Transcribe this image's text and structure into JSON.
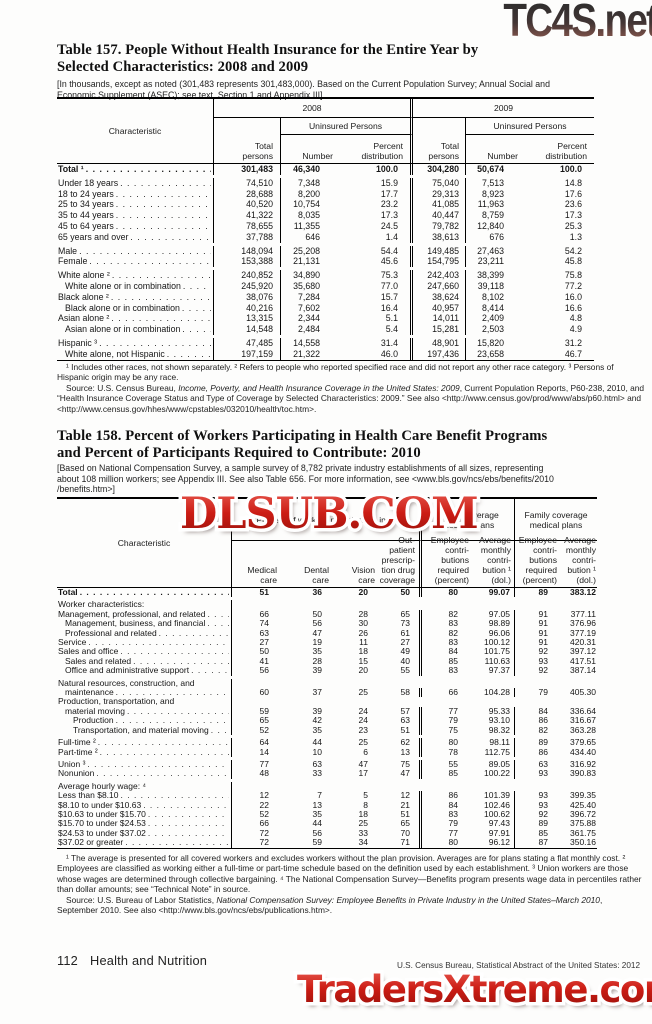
{
  "watermarks": {
    "top": "TC4S.net",
    "middle": "DLSUB.COM",
    "bottom": "TradersXtreme.com"
  },
  "footer": {
    "page_number": "112",
    "section": "Health and Nutrition",
    "credit": "U.S. Census Bureau, Statistical Abstract of the United States: 2012"
  },
  "table157": {
    "title": "Table 157. People Without Health Insurance for the Entire Year by\nSelected Characteristics: 2008 and 2009",
    "note": "[In thousands, except as noted (301,483 represents 301,483,000). Based on the Current Population Survey; Annual Social and\nEconomic Supplement (ASEC); see text, Section 1 and Appendix III]",
    "header": {
      "characteristic": "Characteristic",
      "year1": "2008",
      "year2": "2009",
      "uninsured": "Uninsured Persons",
      "total_persons": "Total\npersons",
      "number": "Number",
      "percent": "Percent\ndistribution"
    },
    "rows": [
      {
        "label": "Total ¹",
        "bold": true,
        "values": [
          "301,483",
          "46,340",
          "100.0",
          "304,280",
          "50,674",
          "100.0"
        ]
      },
      {
        "spacer": true
      },
      {
        "label": "Under 18 years",
        "values": [
          "74,510",
          "7,348",
          "15.9",
          "75,040",
          "7,513",
          "14.8"
        ]
      },
      {
        "label": "18 to 24 years",
        "values": [
          "28,688",
          "8,200",
          "17.7",
          "29,313",
          "8,923",
          "17.6"
        ]
      },
      {
        "label": "25 to 34 years",
        "values": [
          "40,520",
          "10,754",
          "23.2",
          "41,085",
          "11,963",
          "23.6"
        ]
      },
      {
        "label": "35 to 44 years",
        "values": [
          "41,322",
          "8,035",
          "17.3",
          "40,447",
          "8,759",
          "17.3"
        ]
      },
      {
        "label": "45 to 64 years",
        "values": [
          "78,655",
          "11,355",
          "24.5",
          "79,782",
          "12,840",
          "25.3"
        ]
      },
      {
        "label": "65 years and over",
        "values": [
          "37,788",
          "646",
          "1.4",
          "38,613",
          "676",
          "1.3"
        ]
      },
      {
        "spacer": true
      },
      {
        "label": "Male",
        "values": [
          "148,094",
          "25,208",
          "54.4",
          "149,485",
          "27,463",
          "54.2"
        ]
      },
      {
        "label": "Female",
        "values": [
          "153,388",
          "21,131",
          "45.6",
          "154,795",
          "23,211",
          "45.8"
        ]
      },
      {
        "spacer": true
      },
      {
        "label": "White alone ²",
        "values": [
          "240,852",
          "34,890",
          "75.3",
          "242,403",
          "38,399",
          "75.8"
        ]
      },
      {
        "label": "White alone or in combination",
        "indent": 1,
        "values": [
          "245,920",
          "35,680",
          "77.0",
          "247,660",
          "39,118",
          "77.2"
        ]
      },
      {
        "label": "Black alone ²",
        "values": [
          "38,076",
          "7,284",
          "15.7",
          "38,624",
          "8,102",
          "16.0"
        ]
      },
      {
        "label": "Black alone or in combination",
        "indent": 1,
        "values": [
          "40,216",
          "7,602",
          "16.4",
          "40,957",
          "8,414",
          "16.6"
        ]
      },
      {
        "label": "Asian alone ²",
        "values": [
          "13,315",
          "2,344",
          "5.1",
          "14,011",
          "2,409",
          "4.8"
        ]
      },
      {
        "label": "Asian alone or in combination",
        "indent": 1,
        "values": [
          "14,548",
          "2,484",
          "5.4",
          "15,281",
          "2,503",
          "4.9"
        ]
      },
      {
        "spacer": true
      },
      {
        "label": "Hispanic ³",
        "values": [
          "47,485",
          "14,558",
          "31.4",
          "48,901",
          "15,820",
          "31.2"
        ]
      },
      {
        "label": "White alone, not Hispanic",
        "indent": 1,
        "values": [
          "197,159",
          "21,322",
          "46.0",
          "197,436",
          "23,658",
          "46.7"
        ]
      }
    ],
    "footnote": "¹ Includes other races, not shown separately. ² Refers to people who reported specified race and did not report any other race category. ³ Persons of Hispanic origin may be any race.",
    "source_prefix": "Source: U.S. Census Bureau, ",
    "source_italic": "Income, Poverty, and Health Insurance Coverage in the United States: 2009",
    "source_suffix": ", Current Population Reports, P60-238, 2010, and “Health Insurance Coverage Status and Type of Coverage by Selected Characteristics: 2009.” See also <http://www.census.gov/prod/www/abs/p60.html> and <http://www.census.gov/hhes/www/cpstables/032010/health/toc.htm>."
  },
  "table158": {
    "title": "Table 158. Percent of Workers Participating in Health Care Benefit Programs\nand Percent of Participants Required to Contribute: 2010",
    "note": "[Based on National Compensation Survey, a sample survey of 8,782 private industry establishments of all sizes, representing\nabout 108 million workers; see Appendix III. See also Table 656. For more information, see <www.bls.gov/ncs/ebs/benefits/2010\n/benefits.htm>]",
    "header": {
      "characteristic": "Characteristic",
      "group_participating": "Percent of workers participating in—",
      "group_single": "Single coverage\nmedical plans",
      "group_family": "Family coverage\nmedical plans",
      "col_medical": "Medical\ncare",
      "col_dental": "Dental\ncare",
      "col_vision": "Vision\ncare",
      "col_rx": "Out-\npatient\nprescrip-\ntion drug\ncoverage",
      "col_contrib_pct": "Employee\ncontri-\nbutions\nrequired\n(percent)",
      "col_contrib_dol": "Average\nmonthly\ncontri-\nbution ¹\n(dol.)"
    },
    "rows": [
      {
        "label": "Total",
        "bold": true,
        "values": [
          "51",
          "36",
          "20",
          "50",
          "80",
          "99.07",
          "89",
          "383.12"
        ]
      },
      {
        "spacer": true
      },
      {
        "label": "Worker characteristics:",
        "heading": true
      },
      {
        "label": "Management, professional, and related",
        "values": [
          "66",
          "50",
          "28",
          "65",
          "82",
          "97.05",
          "91",
          "377.11"
        ]
      },
      {
        "label": "Management, business, and financial",
        "indent": 1,
        "values": [
          "74",
          "56",
          "30",
          "73",
          "83",
          "98.89",
          "91",
          "376.96"
        ]
      },
      {
        "label": "Professional and related",
        "indent": 1,
        "values": [
          "63",
          "47",
          "26",
          "61",
          "82",
          "96.06",
          "91",
          "377.19"
        ]
      },
      {
        "label": "Service",
        "values": [
          "27",
          "19",
          "11",
          "27",
          "83",
          "100.12",
          "91",
          "420.31"
        ]
      },
      {
        "label": "Sales and office",
        "values": [
          "50",
          "35",
          "18",
          "49",
          "84",
          "101.75",
          "92",
          "397.12"
        ]
      },
      {
        "label": "Sales and related",
        "indent": 1,
        "values": [
          "41",
          "28",
          "15",
          "40",
          "85",
          "110.63",
          "93",
          "417.51"
        ]
      },
      {
        "label": "Office and administrative support",
        "indent": 1,
        "values": [
          "56",
          "39",
          "20",
          "55",
          "83",
          "97.37",
          "92",
          "387.14"
        ]
      },
      {
        "spacer": true
      },
      {
        "label": "Natural resources, construction, and",
        "heading": true
      },
      {
        "label": "maintenance",
        "indent": 1,
        "values": [
          "60",
          "37",
          "25",
          "58",
          "66",
          "104.28",
          "79",
          "405.30"
        ]
      },
      {
        "label": "Production, transportation, and",
        "heading": true
      },
      {
        "label": "material moving",
        "indent": 1,
        "values": [
          "59",
          "39",
          "24",
          "57",
          "77",
          "95.33",
          "84",
          "336.64"
        ]
      },
      {
        "label": "Production",
        "indent": 2,
        "values": [
          "65",
          "42",
          "24",
          "63",
          "79",
          "93.10",
          "86",
          "316.67"
        ]
      },
      {
        "label": "Transportation, and material moving",
        "indent": 2,
        "values": [
          "52",
          "35",
          "23",
          "51",
          "75",
          "98.32",
          "82",
          "363.28"
        ]
      },
      {
        "spacer": true
      },
      {
        "label": "Full-time ²",
        "values": [
          "64",
          "44",
          "25",
          "62",
          "80",
          "98.11",
          "89",
          "379.65"
        ]
      },
      {
        "label": "Part-time ²",
        "values": [
          "14",
          "10",
          "6",
          "13",
          "78",
          "112.75",
          "86",
          "434.40"
        ]
      },
      {
        "spacer": true
      },
      {
        "label": "Union ³",
        "values": [
          "77",
          "63",
          "47",
          "75",
          "55",
          "89.05",
          "63",
          "316.92"
        ]
      },
      {
        "label": "Nonunion",
        "values": [
          "48",
          "33",
          "17",
          "47",
          "85",
          "100.22",
          "93",
          "390.83"
        ]
      },
      {
        "spacer": true
      },
      {
        "label": "Average hourly wage: ⁴",
        "heading": true
      },
      {
        "label": "Less than $8.10",
        "values": [
          "12",
          "7",
          "5",
          "12",
          "86",
          "101.39",
          "93",
          "399.35"
        ]
      },
      {
        "label": "$8.10 to under $10.63",
        "values": [
          "22",
          "13",
          "8",
          "21",
          "84",
          "102.46",
          "93",
          "425.40"
        ]
      },
      {
        "label": "$10.63 to under $15.70",
        "values": [
          "52",
          "35",
          "18",
          "51",
          "83",
          "100.62",
          "92",
          "396.72"
        ]
      },
      {
        "label": "$15.70 to under $24.53",
        "values": [
          "66",
          "44",
          "25",
          "65",
          "79",
          "97.43",
          "89",
          "375.88"
        ]
      },
      {
        "label": "$24.53 to under $37.02",
        "values": [
          "72",
          "56",
          "33",
          "70",
          "77",
          "97.91",
          "85",
          "361.75"
        ]
      },
      {
        "label": "$37.02 or greater",
        "values": [
          "72",
          "59",
          "34",
          "71",
          "80",
          "96.12",
          "87",
          "350.16"
        ]
      }
    ],
    "footnote": "¹ The average is presented for all covered workers and excludes workers without the plan provision. Averages are for plans stating a flat monthly cost. ² Employees are classified as working either a full-time or part-time schedule based on the definition used by each establishment. ³ Union workers are those whose wages are determined through collective bargaining. ⁴ The National Compensation Survey—Benefits program presents wage data in percentiles rather than dollar amounts; see “Technical Note” in source.",
    "source_prefix": "Source: U.S. Bureau of Labor Statistics, ",
    "source_italic": "National Compensation Survey: Employee Benefits in Private Industry in the United States–March 2010",
    "source_suffix": ", September 2010. See also <http://www.bls.gov/ncs/ebs/publications.htm>."
  }
}
